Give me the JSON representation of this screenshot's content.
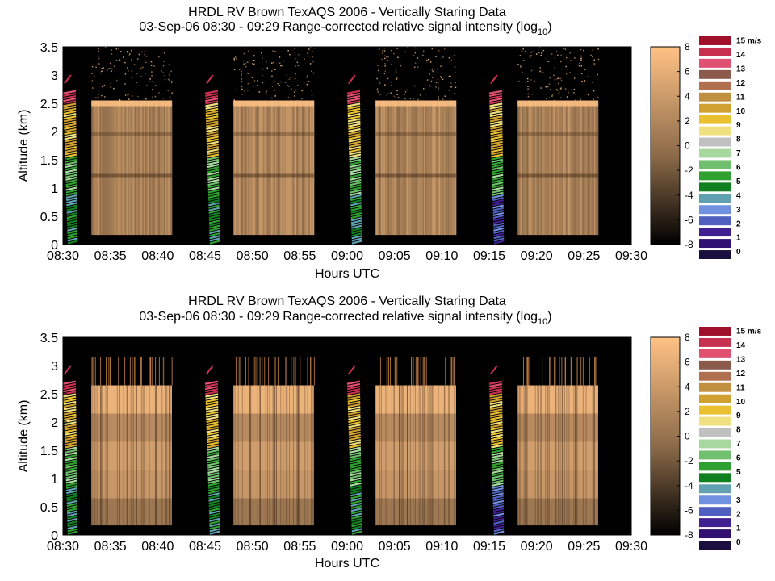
{
  "chart_data": [
    {
      "type": "heatmap",
      "title": "HRDL RV Brown TexAQS 2006 - Vertically Staring Data",
      "subtitle": "03-Sep-06 08:30 - 09:29 Range-corrected relative signal intensity (log",
      "subtitle_sub": "10",
      "subtitle_end": ")",
      "xlabel": "Hours UTC",
      "ylabel": "Altitude (km)",
      "x_ticks": [
        "08:30",
        "08:35",
        "08:40",
        "08:45",
        "08:50",
        "08:55",
        "09:00",
        "09:05",
        "09:10",
        "09:15",
        "09:20",
        "09:25",
        "09:30"
      ],
      "y_ticks": [
        "0",
        "0.5",
        "1",
        "1.5",
        "2",
        "2.5",
        "3",
        "3.5"
      ],
      "xlim": [
        "08:30",
        "09:30"
      ],
      "ylim": [
        0,
        3.5
      ],
      "y_tick_values": [
        0,
        0.5,
        1,
        1.5,
        2,
        2.5,
        3,
        3.5
      ],
      "staring_segments": [
        [
          "08:33",
          "08:41.5"
        ],
        [
          "08:48",
          "08:56.5"
        ],
        [
          "09:03",
          "09:11.5"
        ],
        [
          "09:18",
          "09:26.5"
        ]
      ],
      "wind_profiles": [
        "08:30.5",
        "08:45.5",
        "09:00.5",
        "09:15.5"
      ],
      "signal_min_altitude_km": 0.17,
      "layer_top_km": 2.55,
      "colorbar": {
        "ticks": [
          "-8",
          "-6",
          "-4",
          "-2",
          "0",
          "2",
          "4",
          "6",
          "8"
        ],
        "range": [
          -8,
          8
        ],
        "colors": [
          "#000000",
          "#ffc285"
        ]
      }
    },
    {
      "type": "heatmap",
      "title": "HRDL RV Brown TexAQS 2006 - Vertically Staring Data",
      "subtitle": "03-Sep-06 08:30 - 09:29 Range-corrected relative signal intensity (log",
      "subtitle_sub": "10",
      "subtitle_end": ")",
      "xlabel": "Hours UTC",
      "ylabel": "Altitude (km)",
      "x_ticks": [
        "08:30",
        "08:35",
        "08:40",
        "08:45",
        "08:50",
        "08:55",
        "09:00",
        "09:05",
        "09:10",
        "09:15",
        "09:20",
        "09:25",
        "09:30"
      ],
      "y_ticks": [
        "0",
        "0.5",
        "1",
        "1.5",
        "2",
        "2.5",
        "3",
        "3.5"
      ],
      "xlim": [
        "08:30",
        "09:30"
      ],
      "ylim": [
        0,
        3.5
      ],
      "y_tick_values": [
        0,
        0.5,
        1,
        1.5,
        2,
        2.5,
        3,
        3.5
      ],
      "staring_segments": [
        [
          "08:33",
          "08:41.5"
        ],
        [
          "08:48",
          "08:56.5"
        ],
        [
          "09:03",
          "09:11.5"
        ],
        [
          "09:18",
          "09:26.5"
        ]
      ],
      "wind_profiles": [
        "08:30.5",
        "08:45.5",
        "09:00.5",
        "09:15.5"
      ],
      "signal_min_altitude_km": 0.17,
      "layer_top_km": 2.65,
      "colorbar": {
        "ticks": [
          "-8",
          "-6",
          "-4",
          "-2",
          "0",
          "2",
          "4",
          "6",
          "8"
        ],
        "range": [
          -8,
          8
        ],
        "colors": [
          "#000000",
          "#ffc285"
        ]
      }
    }
  ],
  "wind_legend": {
    "labels": [
      "15 m/s",
      "14",
      "13",
      "12",
      "11",
      "10",
      "9",
      "8",
      "7",
      "6",
      "5",
      "4",
      "3",
      "2",
      "1",
      "0"
    ],
    "colors": [
      "#a0102a",
      "#c83050",
      "#e05070",
      "#8c5a4a",
      "#b07050",
      "#c09040",
      "#d0a030",
      "#e8c030",
      "#f0e080",
      "#c0c0c0",
      "#a8d8a0",
      "#70c070",
      "#30a030",
      "#108020",
      "#60a0b0",
      "#7090e0",
      "#5060c0",
      "#402090",
      "#301070",
      "#1a1040"
    ]
  }
}
